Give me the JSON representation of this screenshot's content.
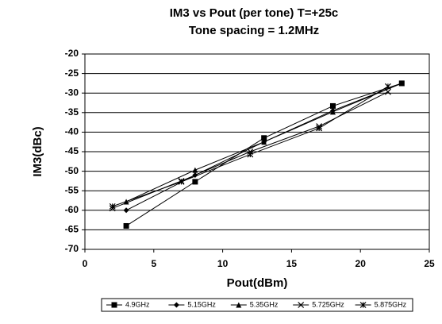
{
  "chart_data": {
    "type": "line",
    "title": "IM3 vs Pout (per tone) T=+25c",
    "subtitle": "Tone spacing = 1.2MHz",
    "x_label": "Pout(dBm)",
    "y_label": "IM3(dBc)",
    "xlim": [
      0,
      25
    ],
    "xticks": [
      0,
      5,
      10,
      15,
      20,
      25
    ],
    "ylim": [
      -70,
      -20
    ],
    "yticks": [
      -20,
      -25,
      -30,
      -35,
      -40,
      -45,
      -50,
      -55,
      -60,
      -65,
      -70
    ],
    "grid": true,
    "legend": "bottom",
    "series": [
      {
        "name": "4.9GHz",
        "color": "#000000",
        "marker": "square",
        "x": [
          3,
          8,
          13,
          18,
          23
        ],
        "values": [
          -64,
          -52.7,
          -41.5,
          -33.3,
          -27.5
        ]
      },
      {
        "name": "5.15GHz",
        "color": "#000000",
        "marker": "diamond",
        "x": [
          3,
          8,
          13,
          18,
          23
        ],
        "values": [
          -60,
          -51,
          -42.5,
          -34.5,
          -27.5
        ]
      },
      {
        "name": "5.35GHz",
        "color": "#000000",
        "marker": "triangle",
        "x": [
          3,
          8,
          13,
          18,
          23
        ],
        "values": [
          -57.8,
          -49.7,
          -42.5,
          -34.8,
          -27.5
        ]
      },
      {
        "name": "5.725GHz",
        "color": "#000000",
        "marker": "x",
        "x": [
          2,
          7,
          12,
          17,
          22
        ],
        "values": [
          -59.5,
          -52.5,
          -45,
          -38.5,
          -29.7
        ]
      },
      {
        "name": "5.875GHz",
        "color": "#000000",
        "marker": "asterisk",
        "x": [
          2,
          7,
          12,
          17,
          22
        ],
        "values": [
          -59,
          -52.7,
          -45.7,
          -39,
          -28.3
        ]
      }
    ]
  }
}
